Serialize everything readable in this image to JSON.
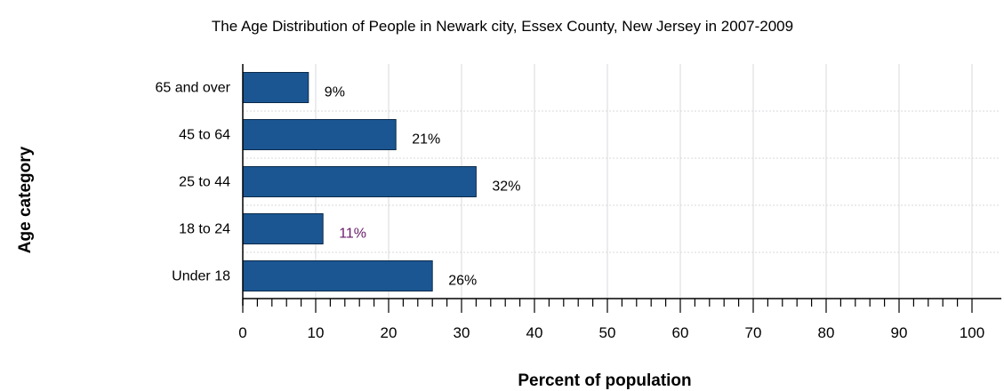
{
  "chart_data": {
    "type": "bar",
    "orientation": "horizontal",
    "title": "The Age Distribution of People in Newark city, Essex County, New Jersey in 2007-2009",
    "xlabel": "Percent of population",
    "ylabel": "Age category",
    "categories": [
      "65 and over",
      "45 to 64",
      "25 to 44",
      "18 to 24",
      "Under 18"
    ],
    "values": [
      9,
      21,
      32,
      11,
      26
    ],
    "data_labels": [
      "9%",
      "21%",
      "32%",
      "11%",
      "26%"
    ],
    "xlim": [
      0,
      100
    ],
    "xticks": [
      0,
      10,
      20,
      30,
      40,
      50,
      60,
      70,
      80,
      90,
      100
    ],
    "xtick_labels": [
      "0",
      "10",
      "20",
      "30",
      "40",
      "50",
      "60",
      "70",
      "80",
      "90",
      "100"
    ],
    "minor_ticks_per_major": 4,
    "grid": true,
    "legend": "none",
    "colors": {
      "bar_fill": "#1b5692",
      "bar_stroke": "#0b2a4a",
      "label_default": "#000000",
      "label_highlight": "#6a1a6a"
    },
    "highlight_label_index": 3
  }
}
